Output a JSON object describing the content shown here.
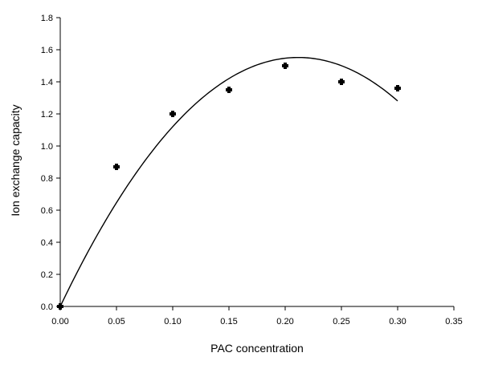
{
  "chart_data": {
    "type": "scatter",
    "title": "",
    "xlabel": "PAC concentration",
    "ylabel": "Ion exchange capacity",
    "xlim": [
      0,
      0.35
    ],
    "ylim": [
      0,
      1.8
    ],
    "xticks": [
      "0.00",
      "0.05",
      "0.10",
      "0.15",
      "0.20",
      "0.25",
      "0.30",
      "0.35"
    ],
    "yticks": [
      "0.0",
      "0.2",
      "0.4",
      "0.6",
      "0.8",
      "1.0",
      "1.2",
      "1.4",
      "1.6",
      "1.8"
    ],
    "grid": false,
    "legend": "none",
    "series": [
      {
        "type": "scatter",
        "marker": "cross",
        "color": "#000000",
        "x": [
          0.0,
          0.05,
          0.1,
          0.15,
          0.2,
          0.25,
          0.3
        ],
        "y": [
          0.0,
          0.87,
          1.2,
          1.35,
          1.5,
          1.4,
          1.36
        ]
      },
      {
        "type": "line",
        "fit": "quadratic",
        "color": "#000000",
        "coefficients": [
          0.0,
          14.67,
          -34.67
        ],
        "x_range": [
          0.0,
          0.3
        ]
      }
    ]
  }
}
